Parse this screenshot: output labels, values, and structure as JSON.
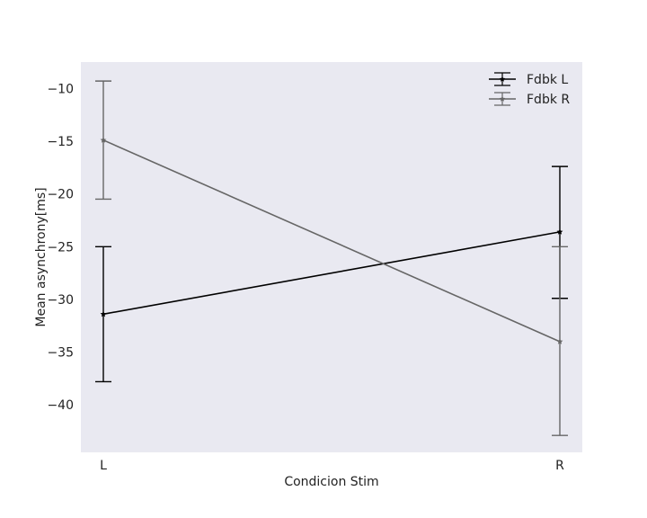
{
  "chart_data": {
    "type": "line",
    "title": "",
    "xlabel": "Condicion Stim",
    "ylabel": "Mean asynchrony[ms]",
    "categories": [
      "L",
      "R"
    ],
    "ylim": [
      -44.5,
      -7.5
    ],
    "yticks": [
      -10,
      -15,
      -20,
      -25,
      -30,
      -35,
      -40
    ],
    "ytick_labels": [
      "−10",
      "−15",
      "−20",
      "−25",
      "−30",
      "−35",
      "−40"
    ],
    "grid": false,
    "legend_position": "top-right",
    "marker": "star",
    "series": [
      {
        "name": "Fdbk L",
        "color": "#000000",
        "values": [
          -31.4,
          -23.6
        ],
        "err_low": [
          -37.8,
          -29.9
        ],
        "err_high": [
          -25.0,
          -17.4
        ]
      },
      {
        "name": "Fdbk R",
        "color": "#666666",
        "values": [
          -14.9,
          -34.0
        ],
        "err_low": [
          -20.5,
          -42.9
        ],
        "err_high": [
          -9.3,
          -25.0
        ]
      }
    ],
    "plot_background": "#e9e9f1"
  }
}
